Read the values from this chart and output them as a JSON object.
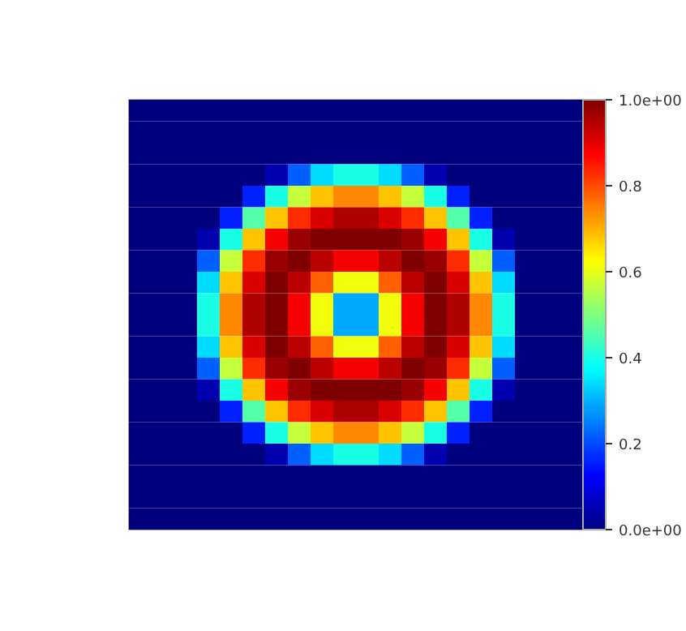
{
  "chart_data": {
    "type": "heatmap",
    "categories": [
      null,
      null,
      null,
      null,
      null,
      null,
      null,
      null,
      null,
      null,
      null,
      null,
      null,
      null,
      null,
      null,
      null,
      null,
      null,
      null
    ],
    "y_categories": [
      null,
      null,
      null,
      null,
      null,
      null,
      null,
      null,
      null,
      null,
      null,
      null,
      null,
      null,
      null,
      null,
      null,
      null,
      null,
      null
    ],
    "cells": [
      [
        0,
        0,
        0,
        0,
        0,
        0,
        0,
        0,
        0,
        0,
        0,
        0,
        0,
        0,
        0,
        0,
        0,
        0,
        0,
        0
      ],
      [
        0,
        0,
        0,
        0,
        0,
        0,
        0,
        0,
        0,
        0,
        0,
        0,
        0,
        0,
        0,
        0,
        0,
        0,
        0,
        0
      ],
      [
        0,
        0,
        0,
        0,
        0,
        0,
        0,
        0,
        0,
        0,
        0,
        0,
        0,
        0,
        0,
        0,
        0,
        0,
        0,
        0
      ],
      [
        0,
        0,
        0,
        0,
        0,
        0,
        0.05,
        0.22,
        0.34,
        0.4,
        0.4,
        0.34,
        0.22,
        0.05,
        0,
        0,
        0,
        0,
        0,
        0
      ],
      [
        0,
        0,
        0,
        0,
        0,
        0.16,
        0.4,
        0.57,
        0.68,
        0.74,
        0.74,
        0.68,
        0.57,
        0.4,
        0.16,
        0,
        0,
        0,
        0,
        0
      ],
      [
        0,
        0,
        0,
        0,
        0.16,
        0.46,
        0.68,
        0.83,
        0.91,
        0.95,
        0.95,
        0.91,
        0.83,
        0.68,
        0.46,
        0.16,
        0,
        0,
        0,
        0
      ],
      [
        0,
        0,
        0,
        0.05,
        0.4,
        0.68,
        0.88,
        0.97,
        1.0,
        1.0,
        1.0,
        1.0,
        0.97,
        0.88,
        0.68,
        0.4,
        0.05,
        0,
        0,
        0
      ],
      [
        0,
        0,
        0,
        0.22,
        0.57,
        0.83,
        0.97,
        1.0,
        0.94,
        0.88,
        0.88,
        0.94,
        1.0,
        0.97,
        0.83,
        0.57,
        0.22,
        0,
        0,
        0
      ],
      [
        0,
        0,
        0,
        0.34,
        0.68,
        0.91,
        1.0,
        0.94,
        0.78,
        0.61,
        0.61,
        0.78,
        0.94,
        1.0,
        0.91,
        0.68,
        0.34,
        0,
        0,
        0
      ],
      [
        0,
        0,
        0,
        0.4,
        0.74,
        0.95,
        1.0,
        0.88,
        0.61,
        0.29,
        0.29,
        0.61,
        0.88,
        1.0,
        0.95,
        0.74,
        0.4,
        0,
        0,
        0
      ],
      [
        0,
        0,
        0,
        0.4,
        0.74,
        0.95,
        1.0,
        0.88,
        0.61,
        0.29,
        0.29,
        0.61,
        0.88,
        1.0,
        0.95,
        0.74,
        0.4,
        0,
        0,
        0
      ],
      [
        0,
        0,
        0,
        0.34,
        0.68,
        0.91,
        1.0,
        0.94,
        0.78,
        0.61,
        0.61,
        0.78,
        0.94,
        1.0,
        0.91,
        0.68,
        0.34,
        0,
        0,
        0
      ],
      [
        0,
        0,
        0,
        0.22,
        0.57,
        0.83,
        0.97,
        1.0,
        0.94,
        0.88,
        0.88,
        0.94,
        1.0,
        0.97,
        0.83,
        0.57,
        0.22,
        0,
        0,
        0
      ],
      [
        0,
        0,
        0,
        0.05,
        0.4,
        0.68,
        0.88,
        0.97,
        1.0,
        1.0,
        1.0,
        1.0,
        0.97,
        0.88,
        0.68,
        0.4,
        0.05,
        0,
        0,
        0
      ],
      [
        0,
        0,
        0,
        0,
        0.16,
        0.46,
        0.68,
        0.83,
        0.91,
        0.95,
        0.95,
        0.91,
        0.83,
        0.68,
        0.46,
        0.16,
        0,
        0,
        0,
        0
      ],
      [
        0,
        0,
        0,
        0,
        0,
        0.16,
        0.4,
        0.57,
        0.68,
        0.74,
        0.74,
        0.68,
        0.57,
        0.4,
        0.16,
        0,
        0,
        0,
        0,
        0
      ],
      [
        0,
        0,
        0,
        0,
        0,
        0,
        0.05,
        0.22,
        0.34,
        0.4,
        0.4,
        0.34,
        0.22,
        0.05,
        0,
        0,
        0,
        0,
        0,
        0
      ],
      [
        0,
        0,
        0,
        0,
        0,
        0,
        0,
        0,
        0,
        0,
        0,
        0,
        0,
        0,
        0,
        0,
        0,
        0,
        0,
        0
      ],
      [
        0,
        0,
        0,
        0,
        0,
        0,
        0,
        0,
        0,
        0,
        0,
        0,
        0,
        0,
        0,
        0,
        0,
        0,
        0,
        0
      ],
      [
        0,
        0,
        0,
        0,
        0,
        0,
        0,
        0,
        0,
        0,
        0,
        0,
        0,
        0,
        0,
        0,
        0,
        0,
        0,
        0
      ]
    ],
    "clim": [
      0,
      1
    ],
    "cticks": [
      {
        "value": 0,
        "label": "0.0e+00"
      },
      0.2,
      0.4,
      0.6,
      0.8,
      {
        "value": 1,
        "label": "1.0e+00"
      }
    ],
    "tick_labels": false
  }
}
